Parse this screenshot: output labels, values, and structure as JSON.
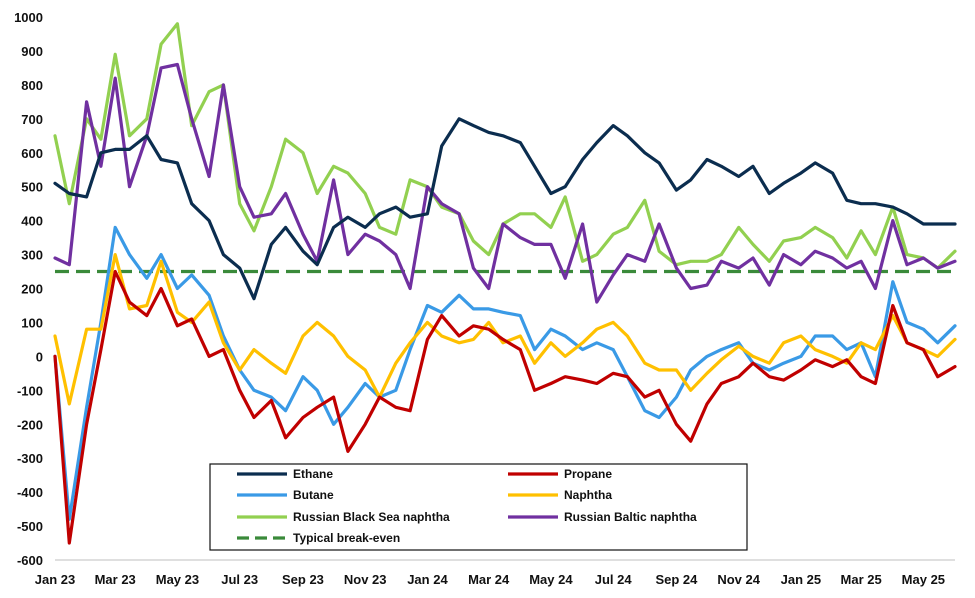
{
  "chart_data": {
    "type": "line",
    "title": "",
    "xlabel": "",
    "ylabel": "",
    "ylim": [
      -600,
      1000
    ],
    "yticks": [
      -600,
      -500,
      -400,
      -300,
      -200,
      -100,
      0,
      100,
      200,
      300,
      400,
      500,
      600,
      700,
      800,
      900,
      1000
    ],
    "x_start": "2023-01",
    "x_end": "2025-06",
    "xtick_labels": [
      "Jan 23",
      "Mar 23",
      "May 23",
      "Jul 23",
      "Sep 23",
      "Nov 23",
      "Jan 24",
      "Mar 24",
      "May 24",
      "Jul 24",
      "Sep 24",
      "Nov 24",
      "Jan 25",
      "Mar 25",
      "May 25"
    ],
    "grid": false,
    "legend_position": "bottom-center",
    "x_dates": [
      "2023-01-01",
      "2023-01-15",
      "2023-02-01",
      "2023-02-15",
      "2023-03-01",
      "2023-03-15",
      "2023-04-01",
      "2023-04-15",
      "2023-05-01",
      "2023-05-15",
      "2023-06-01",
      "2023-06-15",
      "2023-07-01",
      "2023-07-15",
      "2023-08-01",
      "2023-08-15",
      "2023-09-01",
      "2023-09-15",
      "2023-10-01",
      "2023-10-15",
      "2023-11-01",
      "2023-11-15",
      "2023-12-01",
      "2023-12-15",
      "2024-01-01",
      "2024-01-15",
      "2024-02-01",
      "2024-02-15",
      "2024-03-01",
      "2024-03-15",
      "2024-04-01",
      "2024-04-15",
      "2024-05-01",
      "2024-05-15",
      "2024-06-01",
      "2024-06-15",
      "2024-07-01",
      "2024-07-15",
      "2024-08-01",
      "2024-08-15",
      "2024-09-01",
      "2024-09-15",
      "2024-10-01",
      "2024-10-15",
      "2024-11-01",
      "2024-11-15",
      "2024-12-01",
      "2024-12-15",
      "2025-01-01",
      "2025-01-15",
      "2025-02-01",
      "2025-02-15",
      "2025-03-01",
      "2025-03-15",
      "2025-04-01",
      "2025-04-15",
      "2025-05-01",
      "2025-05-15",
      "2025-06-01"
    ],
    "series": [
      {
        "name": "Ethane",
        "color": "#0b2d4f",
        "dash": false,
        "values": [
          510,
          480,
          470,
          600,
          610,
          610,
          650,
          580,
          570,
          450,
          400,
          300,
          260,
          170,
          330,
          380,
          310,
          270,
          380,
          410,
          380,
          420,
          440,
          410,
          420,
          620,
          700,
          680,
          660,
          650,
          630,
          560,
          480,
          500,
          580,
          630,
          680,
          650,
          600,
          570,
          490,
          520,
          580,
          560,
          530,
          560,
          480,
          510,
          540,
          570,
          540,
          460,
          450,
          450,
          440,
          420,
          390,
          390,
          390
        ]
      },
      {
        "name": "Propane",
        "color": "#c00000",
        "dash": false,
        "values": [
          0,
          -550,
          -200,
          20,
          250,
          160,
          120,
          200,
          90,
          110,
          0,
          20,
          -100,
          -180,
          -130,
          -240,
          -180,
          -150,
          -120,
          -280,
          -200,
          -120,
          -150,
          -160,
          50,
          120,
          60,
          90,
          80,
          50,
          20,
          -100,
          -80,
          -60,
          -70,
          -80,
          -50,
          -60,
          -120,
          -100,
          -200,
          -250,
          -140,
          -80,
          -60,
          -20,
          -60,
          -70,
          -40,
          -10,
          -30,
          -10,
          -60,
          -80,
          150,
          40,
          20,
          -60,
          -30
        ]
      },
      {
        "name": "Butane",
        "color": "#3a9ae6",
        "dash": false,
        "values": [
          0,
          -480,
          -150,
          100,
          380,
          300,
          230,
          300,
          200,
          240,
          180,
          60,
          -40,
          -100,
          -120,
          -160,
          -60,
          -100,
          -200,
          -150,
          -80,
          -120,
          -100,
          20,
          150,
          130,
          180,
          140,
          140,
          130,
          120,
          20,
          80,
          60,
          20,
          40,
          20,
          -60,
          -160,
          -180,
          -120,
          -40,
          0,
          20,
          40,
          -20,
          -40,
          -20,
          0,
          60,
          60,
          20,
          40,
          -60,
          220,
          100,
          80,
          40,
          90
        ]
      },
      {
        "name": "Naphtha",
        "color": "#ffc000",
        "dash": false,
        "values": [
          60,
          -140,
          80,
          80,
          300,
          140,
          150,
          280,
          130,
          100,
          160,
          40,
          -40,
          20,
          -20,
          -50,
          60,
          100,
          60,
          0,
          -40,
          -120,
          -20,
          40,
          100,
          60,
          40,
          50,
          100,
          40,
          60,
          -20,
          40,
          0,
          40,
          80,
          100,
          60,
          -20,
          -40,
          -40,
          -100,
          -50,
          -10,
          30,
          0,
          -20,
          40,
          60,
          20,
          0,
          -20,
          40,
          20,
          120,
          40,
          20,
          0,
          50
        ]
      },
      {
        "name": "Russian Black Sea naphtha",
        "color": "#92d050",
        "dash": false,
        "values": [
          650,
          450,
          700,
          640,
          890,
          650,
          700,
          920,
          980,
          680,
          780,
          800,
          450,
          370,
          500,
          640,
          600,
          480,
          560,
          540,
          480,
          380,
          360,
          520,
          500,
          440,
          420,
          340,
          300,
          390,
          420,
          420,
          380,
          470,
          280,
          300,
          360,
          380,
          460,
          310,
          270,
          280,
          280,
          300,
          380,
          330,
          280,
          340,
          350,
          380,
          350,
          290,
          370,
          300,
          440,
          300,
          290,
          260,
          310
        ]
      },
      {
        "name": "Russian Baltic naphtha",
        "color": "#7030a0",
        "dash": false,
        "values": [
          290,
          270,
          750,
          560,
          820,
          500,
          650,
          850,
          860,
          700,
          530,
          800,
          500,
          410,
          420,
          480,
          360,
          280,
          520,
          300,
          360,
          340,
          300,
          200,
          500,
          450,
          420,
          260,
          200,
          390,
          350,
          330,
          330,
          230,
          390,
          160,
          240,
          300,
          280,
          390,
          260,
          200,
          210,
          280,
          260,
          290,
          210,
          300,
          270,
          310,
          290,
          260,
          280,
          200,
          400,
          270,
          290,
          260,
          280
        ]
      },
      {
        "name": "Typical break-even",
        "color": "#3a8a3a",
        "dash": true,
        "values": [
          250,
          250,
          250,
          250,
          250,
          250,
          250,
          250,
          250,
          250,
          250,
          250,
          250,
          250,
          250,
          250,
          250,
          250,
          250,
          250,
          250,
          250,
          250,
          250,
          250,
          250,
          250,
          250,
          250,
          250,
          250,
          250,
          250,
          250,
          250,
          250,
          250,
          250,
          250,
          250,
          250,
          250,
          250,
          250,
          250,
          250,
          250,
          250,
          250,
          250,
          250,
          250,
          250,
          250,
          250,
          250,
          250,
          250,
          250
        ]
      }
    ]
  }
}
